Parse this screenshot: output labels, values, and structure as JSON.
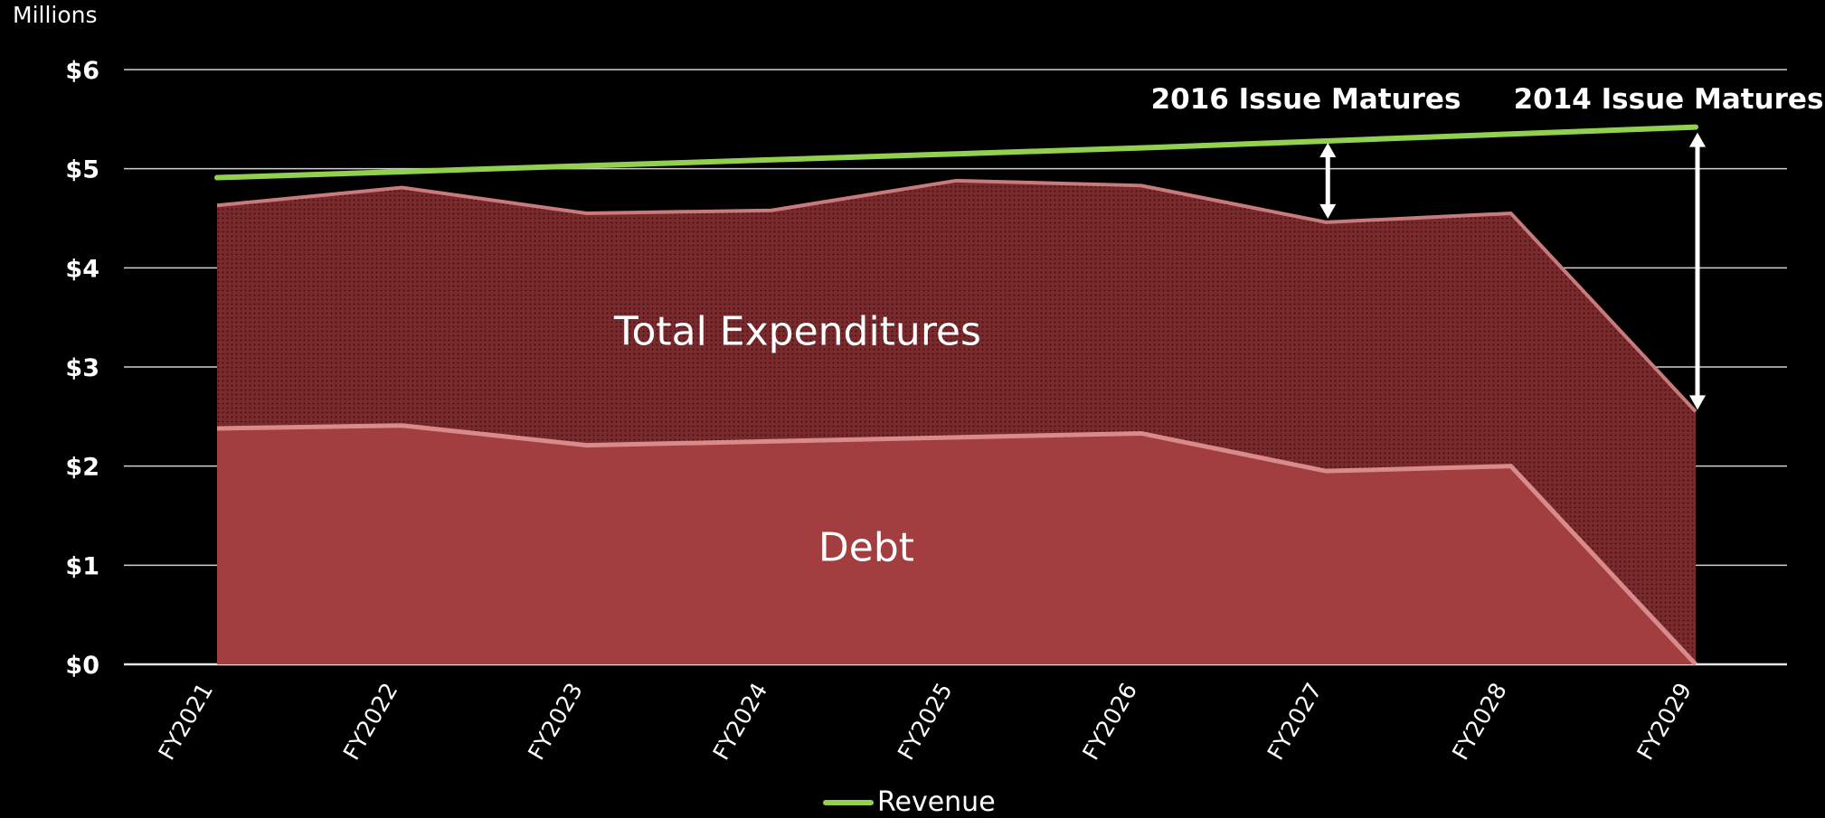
{
  "chart_data": {
    "type": "area",
    "unit_label": "Millions",
    "categories": [
      "FY2021",
      "FY2022",
      "FY2023",
      "FY2024",
      "FY2025",
      "FY2026",
      "FY2027",
      "FY2028",
      "FY2029"
    ],
    "ylim": [
      0,
      6
    ],
    "y_ticks": [
      0,
      1,
      2,
      3,
      4,
      5,
      6
    ],
    "y_tick_labels": [
      "$0",
      "$1",
      "$2",
      "$3",
      "$4",
      "$5",
      "$6"
    ],
    "grid": true,
    "series": [
      {
        "values": [
          4.63,
          4.81,
          4.55,
          4.58,
          4.88,
          4.83,
          4.46,
          4.55,
          2.55
        ],
        "color": "#7a2a2c",
        "kind": "area"
      },
      {
        "values": [
          2.38,
          2.41,
          2.21,
          2.25,
          2.29,
          2.33,
          1.95,
          2.0,
          0.0
        ],
        "color": "#a33e40",
        "kind": "area"
      },
      {
        "name": "Revenue",
        "values": [
          4.91,
          4.97,
          5.03,
          5.09,
          5.15,
          5.21,
          5.28,
          5.35,
          5.42
        ],
        "color": "#92d050",
        "kind": "line"
      }
    ],
    "annotations": [
      {
        "text": "Total Expenditures",
        "anchor_category": "FY2024",
        "anchor_value": 3.35
      },
      {
        "text": "Debt",
        "anchor_category": "FY2025",
        "anchor_value": 1.17
      },
      {
        "text": "2016 Issue Matures",
        "arrow_category": "FY2027",
        "arrow_from": 5.28,
        "arrow_to": 4.46
      },
      {
        "text": "2014 Issue Matures",
        "arrow_category": "FY2029",
        "arrow_from": 5.42,
        "arrow_to": 2.55
      }
    ],
    "legend": {
      "position": "bottom",
      "label": "Revenue"
    }
  }
}
